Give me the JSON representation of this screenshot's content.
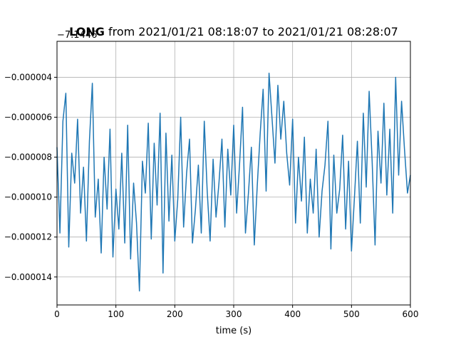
{
  "chart_data": {
    "type": "line",
    "title": {
      "bold": "LONG",
      "rest": " from 2021/01/21 08:18:07 to 2021/01/21 08:28:07"
    },
    "offset_label": "−7.1446",
    "xlabel": "time (s)",
    "ylabel": "",
    "xlim": [
      0,
      600
    ],
    "ylim": [
      -1.54e-05,
      -2.2e-06
    ],
    "grid": true,
    "x_ticks": [
      0,
      100,
      200,
      300,
      400,
      500,
      600
    ],
    "x_tick_labels": [
      "0",
      "100",
      "200",
      "300",
      "400",
      "500",
      "600"
    ],
    "y_ticks": [
      -4e-06,
      -6e-06,
      -8e-06,
      -1e-05,
      -1.2e-05,
      -1.4e-05
    ],
    "y_tick_labels": [
      "−0.000004",
      "−0.000006",
      "−0.000008",
      "−0.000010",
      "−0.000012",
      "−0.000014"
    ],
    "series": [
      {
        "color": "#1f77b4",
        "x": [
          0,
          5,
          10,
          15,
          20,
          25,
          30,
          35,
          40,
          45,
          50,
          55,
          60,
          65,
          70,
          75,
          80,
          85,
          90,
          95,
          100,
          105,
          110,
          115,
          120,
          125,
          130,
          135,
          140,
          145,
          150,
          155,
          160,
          165,
          170,
          175,
          180,
          185,
          190,
          195,
          200,
          205,
          210,
          215,
          220,
          225,
          230,
          235,
          240,
          245,
          250,
          255,
          260,
          265,
          270,
          275,
          280,
          285,
          290,
          295,
          300,
          305,
          310,
          315,
          320,
          325,
          330,
          335,
          340,
          345,
          350,
          355,
          360,
          365,
          370,
          375,
          380,
          385,
          390,
          395,
          400,
          405,
          410,
          415,
          420,
          425,
          430,
          435,
          440,
          445,
          450,
          455,
          460,
          465,
          470,
          475,
          480,
          485,
          490,
          495,
          500,
          505,
          510,
          515,
          520,
          525,
          530,
          535,
          540,
          545,
          550,
          555,
          560,
          565,
          570,
          575,
          580,
          585,
          590,
          595,
          600
        ],
        "y": [
          -7.5e-06,
          -1.18e-05,
          -6.2e-06,
          -4.8e-06,
          -1.25e-05,
          -7.8e-06,
          -9.3e-06,
          -6.1e-06,
          -1.08e-05,
          -8.5e-06,
          -1.22e-05,
          -7.2e-06,
          -4.3e-06,
          -1.1e-05,
          -9.1e-06,
          -1.28e-05,
          -8e-06,
          -1.06e-05,
          -6.6e-06,
          -1.3e-05,
          -9.6e-06,
          -1.16e-05,
          -7.8e-06,
          -1.23e-05,
          -6.4e-06,
          -1.31e-05,
          -9.3e-06,
          -1.13e-05,
          -1.47e-05,
          -8.2e-06,
          -9.8e-06,
          -6.3e-06,
          -1.21e-05,
          -7.3e-06,
          -1.04e-05,
          -5.8e-06,
          -1.38e-05,
          -6.8e-06,
          -1.12e-05,
          -7.9e-06,
          -1.22e-05,
          -1.01e-05,
          -6e-06,
          -1.15e-05,
          -8.8e-06,
          -7.1e-06,
          -1.23e-05,
          -1.06e-05,
          -8.4e-06,
          -1.18e-05,
          -6.2e-06,
          -9.7e-06,
          -1.22e-05,
          -8.1e-06,
          -1.1e-05,
          -9.3e-06,
          -7.1e-06,
          -1.15e-05,
          -7.6e-06,
          -9.9e-06,
          -6.4e-06,
          -1.08e-05,
          -8.3e-06,
          -5.5e-06,
          -1.18e-05,
          -9.8e-06,
          -7.5e-06,
          -1.24e-05,
          -9.4e-06,
          -6.8e-06,
          -4.6e-06,
          -9.7e-06,
          -3.8e-06,
          -6e-06,
          -8.3e-06,
          -4.4e-06,
          -7.1e-06,
          -5.2e-06,
          -7.8e-06,
          -9.4e-06,
          -6.1e-06,
          -1.13e-05,
          -8e-06,
          -1.02e-05,
          -7e-06,
          -1.18e-05,
          -9.1e-06,
          -1.08e-05,
          -7.6e-06,
          -1.2e-05,
          -9.7e-06,
          -8.4e-06,
          -6.2e-06,
          -1.26e-05,
          -7.9e-06,
          -1.08e-05,
          -9.6e-06,
          -6.9e-06,
          -1.16e-05,
          -8.2e-06,
          -1.27e-05,
          -1e-05,
          -7.2e-06,
          -1.13e-05,
          -5.8e-06,
          -9.5e-06,
          -4.7e-06,
          -8.2e-06,
          -1.24e-05,
          -6.7e-06,
          -9.3e-06,
          -5.3e-06,
          -9.9e-06,
          -6.6e-06,
          -1.08e-05,
          -4e-06,
          -8.9e-06,
          -5.2e-06,
          -7.6e-06,
          -9.8e-06,
          -8.9e-06
        ]
      }
    ]
  }
}
